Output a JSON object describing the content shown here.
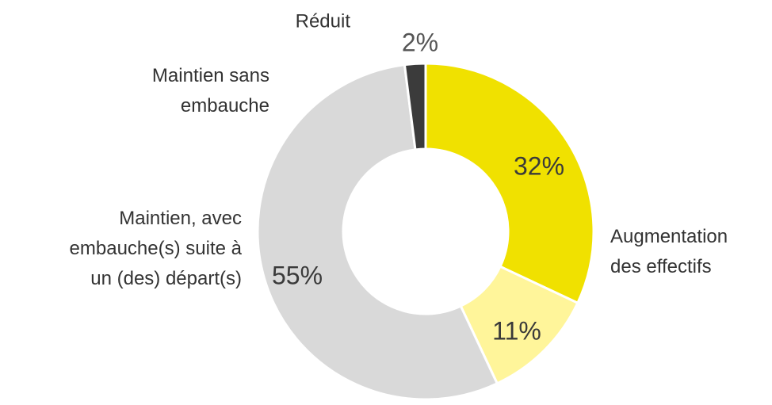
{
  "chart_data": {
    "type": "donut",
    "categories": [
      "Augmentation\ndes effectifs",
      "Maintien sans\nembauche",
      "Maintien, avec\nembauche(s) suite à\nun (des) départ(s)",
      "Réduit"
    ],
    "values": [
      32,
      11,
      55,
      2
    ],
    "value_labels": [
      "32%",
      "11%",
      "55%",
      "2%"
    ],
    "colors": [
      "#f0e100",
      "#fff59a",
      "#d9d9d9",
      "#3b3b3b"
    ]
  }
}
